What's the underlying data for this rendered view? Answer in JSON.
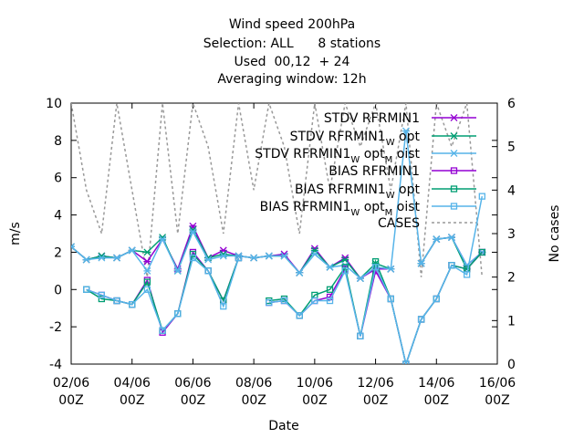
{
  "chart_data": {
    "type": "line",
    "title_lines": [
      "Wind speed 200hPa",
      "Selection: ALL      8 stations",
      "Used  00,12  + 24",
      "Averaging window: 12h"
    ],
    "xlabel": "Date",
    "ylabel": "m/s",
    "y2label": "No cases",
    "ylim": [
      -4,
      10
    ],
    "y2lim": [
      0,
      6
    ],
    "xlim": [
      "2024-06-02 00Z",
      "2024-06-16 00Z"
    ],
    "x_ticks": [
      {
        "date": "02/06",
        "hour": "00Z"
      },
      {
        "date": "04/06",
        "hour": "00Z"
      },
      {
        "date": "06/06",
        "hour": "00Z"
      },
      {
        "date": "08/06",
        "hour": "00Z"
      },
      {
        "date": "10/06",
        "hour": "00Z"
      },
      {
        "date": "12/06",
        "hour": "00Z"
      },
      {
        "date": "14/06",
        "hour": "00Z"
      },
      {
        "date": "16/06",
        "hour": "00Z"
      }
    ],
    "y_ticks": [
      "-4",
      "-2",
      "0",
      "2",
      "4",
      "6",
      "8",
      "10"
    ],
    "y2_ticks": [
      "0",
      "1",
      "2",
      "3",
      "4",
      "5",
      "6"
    ],
    "x": [
      "2024-06-02 00Z",
      "2024-06-02 12Z",
      "2024-06-03 00Z",
      "2024-06-03 12Z",
      "2024-06-04 00Z",
      "2024-06-04 12Z",
      "2024-06-05 00Z",
      "2024-06-05 12Z",
      "2024-06-06 00Z",
      "2024-06-06 12Z",
      "2024-06-07 00Z",
      "2024-06-07 12Z",
      "2024-06-08 00Z",
      "2024-06-08 12Z",
      "2024-06-09 00Z",
      "2024-06-09 12Z",
      "2024-06-10 00Z",
      "2024-06-10 12Z",
      "2024-06-11 00Z",
      "2024-06-11 12Z",
      "2024-06-12 00Z",
      "2024-06-12 12Z",
      "2024-06-13 00Z",
      "2024-06-13 12Z",
      "2024-06-14 00Z",
      "2024-06-14 12Z",
      "2024-06-15 00Z",
      "2024-06-15 12Z",
      "2024-06-16 00Z"
    ],
    "series": [
      {
        "name": "STDV RFRMIN1",
        "color": "#9400d3",
        "marker": "x",
        "axis": "y",
        "values": [
          2.3,
          1.6,
          1.8,
          1.7,
          2.1,
          1.5,
          2.7,
          1.1,
          3.4,
          1.7,
          2.1,
          1.8,
          1.7,
          1.8,
          1.9,
          0.9,
          2.2,
          1.2,
          1.7,
          0.6,
          1.1,
          1.1,
          null,
          1.4,
          2.7,
          2.8,
          1.3,
          2.0,
          null
        ]
      },
      {
        "name": "STDV RFRMIN1_W opt",
        "color": "#009e73",
        "marker": "x",
        "axis": "y",
        "values": [
          2.3,
          1.6,
          1.8,
          1.7,
          2.1,
          2.0,
          2.8,
          1.0,
          3.2,
          1.7,
          1.9,
          1.8,
          1.7,
          1.8,
          1.8,
          0.9,
          2.1,
          1.2,
          1.6,
          0.6,
          1.4,
          1.1,
          null,
          1.4,
          2.7,
          2.8,
          1.1,
          2.0,
          null
        ]
      },
      {
        "name": "STDV RFRMIN1_W opt_M oist",
        "color": "#56b4e9",
        "marker": "x",
        "axis": "y",
        "values": [
          2.3,
          1.6,
          1.7,
          1.7,
          2.1,
          1.0,
          2.7,
          1.0,
          3.1,
          1.6,
          1.8,
          1.8,
          1.7,
          1.8,
          1.8,
          0.9,
          1.9,
          1.2,
          1.3,
          0.6,
          1.2,
          1.1,
          8.5,
          1.4,
          2.7,
          2.8,
          1.3,
          2.0,
          null
        ]
      },
      {
        "name": "BIAS RFRMIN1",
        "color": "#9400d3",
        "marker": "square",
        "axis": "y",
        "values": [
          null,
          0.0,
          -0.3,
          -0.6,
          -0.8,
          0.5,
          -2.3,
          -1.3,
          2.0,
          1.0,
          -0.6,
          1.7,
          null,
          -0.7,
          -0.6,
          -1.4,
          -0.6,
          -0.4,
          1.1,
          -2.5,
          1.0,
          -0.5,
          -4.0,
          -1.6,
          -0.5,
          1.3,
          1.1,
          2.0,
          null
        ]
      },
      {
        "name": "BIAS RFRMIN1_W opt",
        "color": "#009e73",
        "marker": "square",
        "axis": "y",
        "values": [
          null,
          0.0,
          -0.5,
          -0.6,
          -0.8,
          0.4,
          -2.2,
          -1.3,
          1.9,
          1.0,
          -0.6,
          1.7,
          null,
          -0.6,
          -0.5,
          -1.4,
          -0.3,
          0.0,
          1.2,
          -2.5,
          1.5,
          -0.5,
          -4.0,
          -1.6,
          -0.5,
          1.3,
          1.1,
          2.0,
          null
        ]
      },
      {
        "name": "BIAS RFRMIN1_W opt_M oist",
        "color": "#56b4e9",
        "marker": "square",
        "axis": "y",
        "values": [
          null,
          0.0,
          -0.3,
          -0.6,
          -0.8,
          0.0,
          -2.2,
          -1.3,
          1.7,
          1.0,
          -0.9,
          1.7,
          null,
          -0.7,
          -0.6,
          -1.4,
          -0.6,
          -0.6,
          1.0,
          -2.5,
          1.2,
          -0.5,
          -4.0,
          -1.6,
          -0.5,
          1.3,
          0.8,
          5.0,
          null
        ]
      },
      {
        "name": "CASES",
        "color": "#999999",
        "marker": "none",
        "dash": true,
        "axis": "y2",
        "values": [
          6,
          4,
          3,
          6,
          4,
          2,
          6,
          3,
          6,
          5,
          3,
          6,
          4,
          6,
          5,
          3,
          6,
          4,
          6,
          5,
          6,
          4,
          6,
          2,
          6,
          5,
          6,
          2,
          null
        ]
      }
    ],
    "legend_position": "top-right",
    "grid": false
  }
}
